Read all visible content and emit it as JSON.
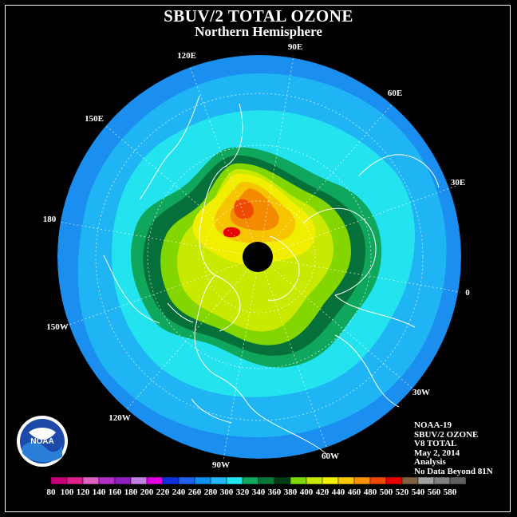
{
  "title": "SBUV/2 TOTAL OZONE",
  "subtitle": "Northern Hemisphere",
  "longitude_labels": [
    "90E",
    "60E",
    "30E",
    "0",
    "30W",
    "60W",
    "90W",
    "120W",
    "150W",
    "180",
    "150E",
    "120E"
  ],
  "info": {
    "satellite": "NOAA-19",
    "product": "SBUV/2 OZONE",
    "version": "V8 TOTAL",
    "date": "May 2, 2014",
    "type": "Analysis",
    "note": "No Data Beyond 81N"
  },
  "logo_text": "NOAA",
  "legend": {
    "ticks": [
      "80",
      "100",
      "120",
      "140",
      "160",
      "180",
      "200",
      "220",
      "240",
      "260",
      "280",
      "300",
      "320",
      "340",
      "360",
      "380",
      "400",
      "420",
      "440",
      "460",
      "480",
      "500",
      "520",
      "540",
      "560",
      "580"
    ],
    "colors": [
      "#c8007a",
      "#e0208a",
      "#e060c0",
      "#b030c8",
      "#9020c0",
      "#c080e0",
      "#e000e0",
      "#1030e0",
      "#2060f0",
      "#1090f0",
      "#20b8f8",
      "#20e8f0",
      "#10a860",
      "#087838",
      "#003c18",
      "#80d800",
      "#c8e800",
      "#f0f000",
      "#f8c800",
      "#f89000",
      "#f04800",
      "#e80000",
      "#806040",
      "#a0a0a0",
      "#808080",
      "#606060"
    ]
  },
  "colors": {
    "background": "#000000",
    "ocean_base": "#1a8fef"
  }
}
